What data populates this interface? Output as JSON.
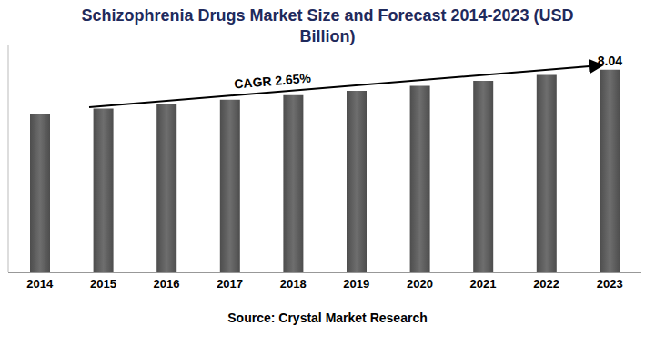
{
  "chart_data": {
    "type": "bar",
    "title": "Schizophrenia Drugs Market Size and Forecast 2014-2023 (USD Billion)",
    "categories": [
      "2014",
      "2015",
      "2016",
      "2017",
      "2018",
      "2019",
      "2020",
      "2021",
      "2022",
      "2023"
    ],
    "values": [
      6.3,
      6.5,
      6.67,
      6.85,
      7.03,
      7.2,
      7.4,
      7.6,
      7.83,
      8.04
    ],
    "value_labels": [
      null,
      null,
      null,
      null,
      null,
      null,
      null,
      null,
      null,
      "8.04"
    ],
    "color": "#4d4d4d",
    "ylim": [
      0,
      9
    ],
    "tick_labels": "x",
    "grid": false,
    "annotations": [
      "CAGR 2.65%"
    ],
    "source": "Source: Crystal Market Research"
  }
}
